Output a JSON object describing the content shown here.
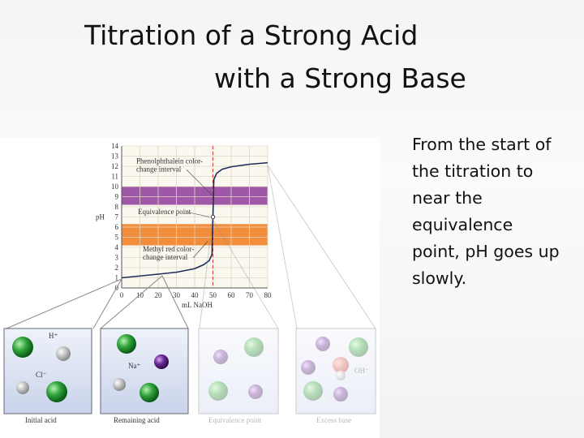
{
  "slide": {
    "title_lines": [
      "Titration of a Strong Acid",
      "with a  Strong Base"
    ],
    "body_lines": [
      "From the start of",
      "the titration to",
      "near the",
      "equivalence",
      "point, pH goes up",
      "slowly."
    ]
  },
  "chart_data": {
    "type": "line",
    "y_label": "pH",
    "x_label": "mL NaOH",
    "x": [
      0,
      10,
      20,
      30,
      40,
      45,
      48,
      49.5,
      50,
      50.5,
      52,
      55,
      60,
      70,
      80
    ],
    "series": [
      {
        "color": "#1f2d5a",
        "values": [
          1.0,
          1.18,
          1.36,
          1.55,
          1.9,
          2.3,
          2.7,
          3.3,
          7.0,
          10.7,
          11.3,
          11.7,
          11.95,
          12.2,
          12.35
        ]
      }
    ],
    "xlim": [
      0,
      80
    ],
    "xticks": [
      0,
      10,
      20,
      30,
      40,
      50,
      60,
      70,
      80
    ],
    "ylim": [
      0,
      14
    ],
    "yticks": [
      0,
      1,
      2,
      3,
      4,
      5,
      6,
      7,
      8,
      9,
      10,
      11,
      12,
      13,
      14
    ],
    "grid": true,
    "bands": [
      {
        "ylim": [
          8.2,
          10
        ],
        "color": "#8e3c9a"
      },
      {
        "ylim": [
          4.2,
          6.3
        ],
        "color": "#f07a1c"
      }
    ],
    "equivalence_x": 50,
    "equivalence_y": 7,
    "annotations": [
      {
        "lines": [
          "Phenolphthalein color-",
          "change interval"
        ]
      },
      {
        "lines": [
          "Equivalence point"
        ]
      },
      {
        "lines": [
          "Methyl red color-",
          "change interval"
        ]
      }
    ]
  },
  "panels": [
    {
      "label": "Initial acid",
      "ions": [
        "H⁺",
        "Cl⁻"
      ]
    },
    {
      "label": "Remaining acid",
      "ions": [
        "Na⁺"
      ]
    },
    {
      "label": "Equivalence point",
      "ions": []
    },
    {
      "label": "Excess base",
      "ions": [
        "OH⁻"
      ]
    }
  ]
}
